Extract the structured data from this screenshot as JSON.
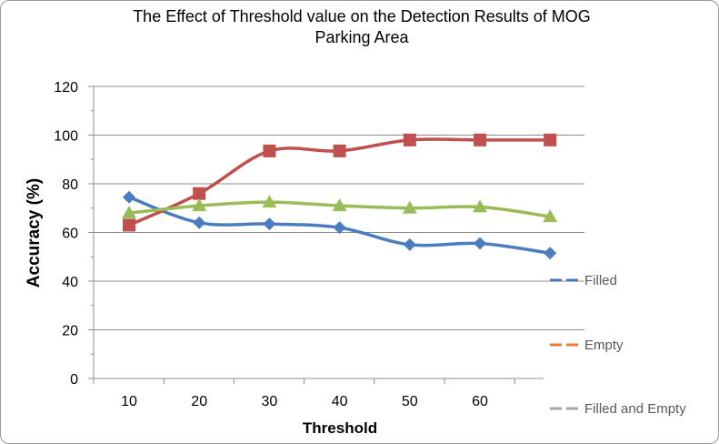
{
  "chart_data": {
    "type": "line",
    "title": "The Effect of Threshold value on the Detection Results of MOG",
    "subtitle": "Parking Area",
    "xlabel": "Threshold",
    "ylabel": "Accuracy (%)",
    "x": [
      10,
      20,
      30,
      40,
      50,
      60,
      70
    ],
    "x_tick_labels": [
      "10",
      "20",
      "30",
      "40",
      "50",
      "60"
    ],
    "ylim": [
      0,
      120
    ],
    "y_ticks": [
      0,
      20,
      40,
      60,
      80,
      100,
      120
    ],
    "grid": true,
    "legend_position": "right",
    "series": [
      {
        "name": "Filled",
        "color": "#4a7cc0",
        "marker": "diamond",
        "legend_color": "#4472c4",
        "values": [
          74.5,
          64,
          63.5,
          62,
          55,
          55.5,
          51.5
        ]
      },
      {
        "name": "Empty",
        "color": "#c0504d",
        "marker": "square",
        "legend_color": "#ed7d31",
        "values": [
          63,
          76,
          93.5,
          93.5,
          98,
          98,
          98
        ]
      },
      {
        "name": "Filled and Empty",
        "color": "#9bbb59",
        "marker": "triangle",
        "legend_color": "#a5a5a5",
        "values": [
          68,
          71,
          72.5,
          71,
          70,
          70.5,
          66.5
        ]
      }
    ]
  }
}
